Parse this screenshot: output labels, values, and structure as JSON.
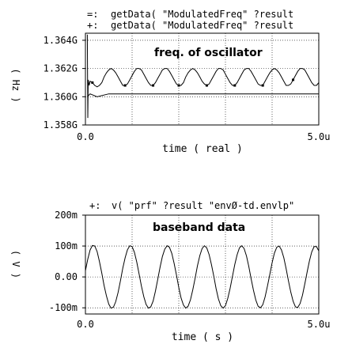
{
  "chart_data": [
    {
      "type": "line",
      "title": "freq. of oscillator",
      "xlabel": "time ( real )",
      "ylabel": "( Hz )",
      "xlim": [
        0,
        5.0
      ],
      "ylim": [
        1.358,
        1.3645
      ],
      "y_unit_label": "G",
      "x_tick_labels": [
        "0.0",
        "5.0u"
      ],
      "y_ticks": [
        {
          "value": 1.364,
          "label": "1.364G"
        },
        {
          "value": 1.362,
          "label": "1.362G"
        },
        {
          "value": 1.36,
          "label": "1.360G"
        },
        {
          "value": 1.358,
          "label": "1.358G"
        }
      ],
      "grid": true,
      "legend": [
        {
          "marker": "=:",
          "name": "getData( \"ModulatedFreq\" ?result"
        },
        {
          "marker": "+:",
          "name": "getData( \"ModulatedFreq\" ?result"
        }
      ],
      "series": [
        {
          "name": "getData( \"ModulatedFreq\" ?result",
          "style": "oscillating",
          "x": [
            0.04,
            0.05,
            0.06,
            0.08,
            0.1,
            0.15,
            0.2,
            0.25,
            0.3,
            0.35,
            0.4,
            0.45,
            0.5,
            0.55,
            0.6,
            0.65,
            0.7,
            0.75,
            0.8,
            0.85,
            0.9,
            0.95,
            1.0,
            1.05,
            1.1,
            1.15,
            1.2,
            1.25,
            1.3,
            1.35,
            1.4,
            1.45,
            1.5,
            1.55,
            1.6,
            1.65,
            1.7,
            1.75,
            1.8,
            1.85,
            1.9,
            1.95,
            2.0,
            2.05,
            2.1,
            2.15,
            2.2,
            2.25,
            2.3,
            2.35,
            2.4,
            2.45,
            2.5,
            2.55,
            2.6,
            2.65,
            2.7,
            2.75,
            2.8,
            2.85,
            2.9,
            2.95,
            3.0,
            3.05,
            3.1,
            3.15,
            3.2,
            3.25,
            3.3,
            3.35,
            3.4,
            3.45,
            3.5,
            3.55,
            3.6,
            3.65,
            3.7,
            3.75,
            3.8,
            3.85,
            3.9,
            3.95,
            4.0,
            4.05,
            4.1,
            4.15,
            4.2,
            4.25,
            4.3,
            4.35,
            4.4,
            4.45,
            4.5,
            4.55,
            4.6,
            4.65,
            4.7,
            4.75,
            4.8,
            4.85,
            4.9,
            4.95,
            5.0
          ],
          "values": [
            1.3644,
            1.3585,
            1.3612,
            1.3608,
            1.3611,
            1.361,
            1.3608,
            1.3607,
            1.3608,
            1.361,
            1.3614,
            1.3617,
            1.3619,
            1.362,
            1.3619,
            1.3617,
            1.3614,
            1.3611,
            1.3608,
            1.3608,
            1.3609,
            1.3612,
            1.3615,
            1.3618,
            1.362,
            1.362,
            1.3619,
            1.3616,
            1.3613,
            1.361,
            1.3608,
            1.3608,
            1.361,
            1.3613,
            1.3616,
            1.3619,
            1.362,
            1.362,
            1.3618,
            1.3615,
            1.3612,
            1.3609,
            1.3608,
            1.3608,
            1.361,
            1.3614,
            1.3617,
            1.3619,
            1.362,
            1.3619,
            1.3617,
            1.3614,
            1.3611,
            1.3609,
            1.3608,
            1.3609,
            1.3612,
            1.3615,
            1.3618,
            1.362,
            1.362,
            1.3619,
            1.3616,
            1.3613,
            1.361,
            1.3608,
            1.3608,
            1.361,
            1.3613,
            1.3616,
            1.3619,
            1.362,
            1.362,
            1.3618,
            1.3615,
            1.3612,
            1.3609,
            1.3608,
            1.3608,
            1.3611,
            1.3614,
            1.3617,
            1.3619,
            1.362,
            1.3619,
            1.3617,
            1.3614,
            1.3611,
            1.3608,
            1.3608,
            1.3609,
            1.3612,
            1.3615,
            1.3618,
            1.362,
            1.362,
            1.3619,
            1.3616,
            1.3613,
            1.361,
            1.3608,
            1.3608,
            1.361
          ]
        },
        {
          "name": "getData( \"ModulatedFreq\" ?result",
          "style": "flat",
          "x": [
            0.04,
            0.1,
            0.25,
            0.5,
            1.0,
            1.5,
            2.0,
            2.5,
            3.0,
            3.5,
            4.0,
            4.5,
            5.0
          ],
          "values": [
            1.36,
            1.3602,
            1.36,
            1.3602,
            1.3602,
            1.3602,
            1.3602,
            1.3602,
            1.3602,
            1.3602,
            1.3602,
            1.3602,
            1.3602
          ]
        }
      ]
    },
    {
      "type": "line",
      "title": "baseband data",
      "xlabel": "time ( s )",
      "ylabel": "( V )",
      "xlim": [
        0,
        5.0
      ],
      "ylim": [
        -0.12,
        0.2
      ],
      "x_tick_labels": [
        "0.0",
        "5.0u"
      ],
      "y_ticks": [
        {
          "value": 0.2,
          "label": "200m"
        },
        {
          "value": 0.1,
          "label": "100m"
        },
        {
          "value": 0.0,
          "label": "0.00"
        },
        {
          "value": -0.1,
          "label": "-100m"
        }
      ],
      "grid": true,
      "legend": [
        {
          "marker": "+:",
          "name": "v( \"prf\" ?result \"envØ-td.envlp\""
        }
      ],
      "series": [
        {
          "name": "v( \"prf\" ?result \"envØ-td.envlp\"",
          "x": [
            0.0,
            0.05,
            0.1,
            0.15,
            0.2,
            0.25,
            0.3,
            0.35,
            0.4,
            0.45,
            0.5,
            0.55,
            0.6,
            0.65,
            0.7,
            0.75,
            0.8,
            0.85,
            0.9,
            0.95,
            1.0,
            1.05,
            1.1,
            1.15,
            1.2,
            1.25,
            1.3,
            1.35,
            1.4,
            1.45,
            1.5,
            1.55,
            1.6,
            1.65,
            1.7,
            1.75,
            1.8,
            1.85,
            1.9,
            1.95,
            2.0,
            2.05,
            2.1,
            2.15,
            2.2,
            2.25,
            2.3,
            2.35,
            2.4,
            2.45,
            2.5,
            2.55,
            2.6,
            2.65,
            2.7,
            2.75,
            2.8,
            2.85,
            2.9,
            2.95,
            3.0,
            3.05,
            3.1,
            3.15,
            3.2,
            3.25,
            3.3,
            3.35,
            3.4,
            3.45,
            3.5,
            3.55,
            3.6,
            3.65,
            3.7,
            3.75,
            3.8,
            3.85,
            3.9,
            3.95,
            4.0,
            4.05,
            4.1,
            4.15,
            4.2,
            4.25,
            4.3,
            4.35,
            4.4,
            4.45,
            4.5,
            4.55,
            4.6,
            4.65,
            4.7,
            4.75,
            4.8,
            4.85,
            4.9,
            4.95,
            5.0
          ],
          "values": [
            0.02,
            0.058,
            0.087,
            0.102,
            0.1,
            0.082,
            0.05,
            0.012,
            -0.028,
            -0.062,
            -0.088,
            -0.101,
            -0.098,
            -0.08,
            -0.05,
            -0.012,
            0.028,
            0.062,
            0.088,
            0.101,
            0.098,
            0.08,
            0.048,
            0.01,
            -0.03,
            -0.064,
            -0.089,
            -0.101,
            -0.097,
            -0.078,
            -0.046,
            -0.008,
            0.032,
            0.066,
            0.09,
            0.101,
            0.096,
            0.076,
            0.044,
            0.006,
            -0.034,
            -0.068,
            -0.091,
            -0.101,
            -0.095,
            -0.074,
            -0.042,
            -0.004,
            0.036,
            0.069,
            0.092,
            0.101,
            0.094,
            0.072,
            0.04,
            0.002,
            -0.038,
            -0.071,
            -0.093,
            -0.101,
            -0.093,
            -0.07,
            -0.037,
            0.002,
            0.04,
            0.072,
            0.094,
            0.101,
            0.092,
            0.068,
            0.034,
            -0.005,
            -0.043,
            -0.075,
            -0.095,
            -0.1,
            -0.09,
            -0.065,
            -0.03,
            0.008,
            0.046,
            0.077,
            0.096,
            0.1,
            0.088,
            0.062,
            0.027,
            -0.012,
            -0.049,
            -0.079,
            -0.097,
            -0.099,
            -0.086,
            -0.059,
            -0.023,
            0.016,
            0.052,
            0.081,
            0.098,
            0.098,
            0.084
          ]
        }
      ]
    }
  ]
}
